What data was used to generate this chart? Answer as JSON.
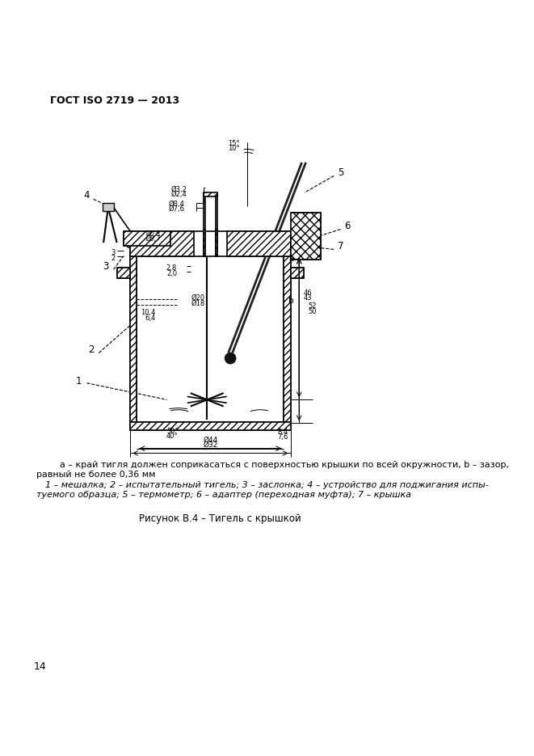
{
  "header": "ГОСТ ISO 2719 — 2013",
  "caption_note": "a – край тигля должен соприкасаться с поверхностью крышки по всей окружности, b – зазор,\nравный не более 0,36 мм",
  "caption_items": "1 – мешалка; 2 – испытательный тигель; 3 – заслонка; 4 – устройство для поджигания испы-\nтуемого образца; 5 – термометр; 6 – адаптер (переходная муфта); 7 – крышка",
  "figure_caption": "Рисунок В.4 – Тигель с крышкой",
  "page_number": "14",
  "bg_color": "#ffffff",
  "line_color": "#000000",
  "hatch_color": "#000000"
}
